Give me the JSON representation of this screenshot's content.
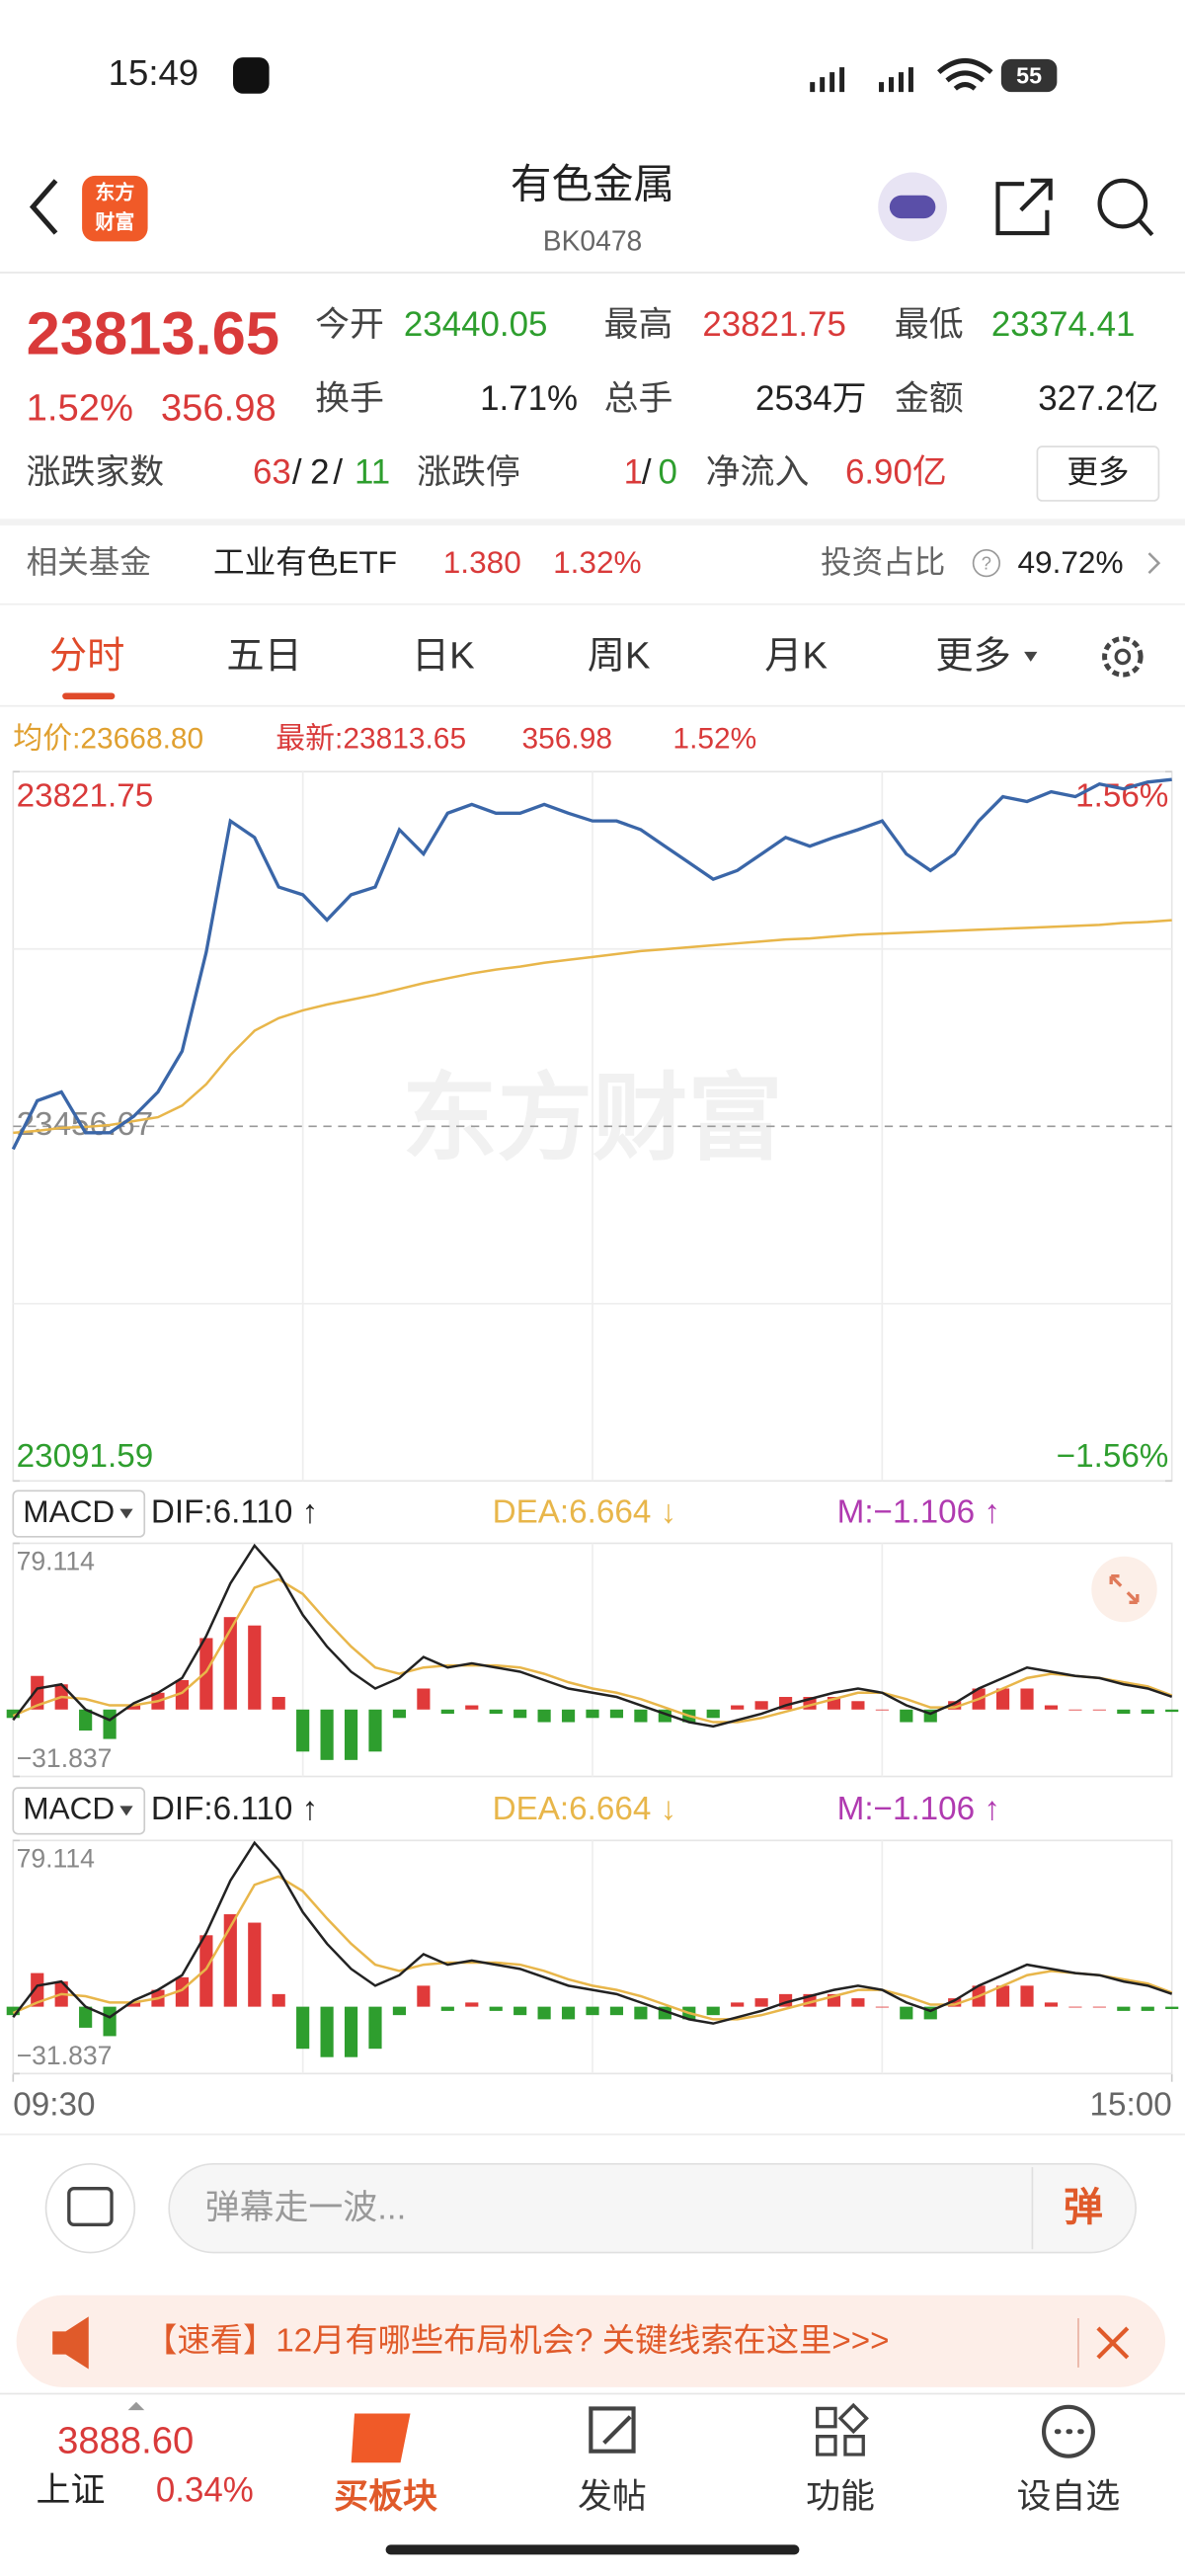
{
  "status_bar": {
    "time": "15:49",
    "battery": "55"
  },
  "header": {
    "logo": [
      "东方",
      "财富"
    ],
    "title": "有色金属",
    "code": "BK0478"
  },
  "quote": {
    "price": "23813.65",
    "change_pct": "1.52%",
    "change": "356.98",
    "fields": [
      {
        "label": "今开",
        "value": "23440.05"
      },
      {
        "label": "最高",
        "value": "23821.75"
      },
      {
        "label": "最低",
        "value": "23374.41"
      },
      {
        "label": "换手",
        "value": "1.71%"
      },
      {
        "label": "总手",
        "value": "2534万"
      },
      {
        "label": "金额",
        "value": "327.2亿"
      }
    ],
    "breadth": {
      "label": "涨跌家数",
      "up": "63",
      "sep": "/",
      "flat": "2",
      "down": "11"
    },
    "limit": {
      "label": "涨跌停",
      "up": "1",
      "sep": "/",
      "down": "0"
    },
    "inflow": {
      "label": "净流入",
      "value": "6.90亿"
    },
    "more": "更多"
  },
  "fund": {
    "label": "相关基金",
    "name": "工业有色ETF",
    "price": "1.380",
    "change": "1.32%",
    "ratio_label": "投资占比",
    "ratio": "49.72%"
  },
  "tabs": [
    "分时",
    "五日",
    "日K",
    "周K",
    "月K",
    "更多"
  ],
  "chart_data": [
    {
      "type": "line",
      "info": {
        "avg": "均价:23668.80",
        "latest": "最新:23813.65",
        "change": "356.98",
        "change_pct": "1.52%"
      },
      "x": [
        0,
        5,
        10,
        15,
        20,
        25,
        30,
        35,
        40,
        45,
        50,
        55,
        60,
        65,
        70,
        75,
        80,
        85,
        90,
        95,
        100,
        105,
        110,
        115,
        120,
        125,
        130,
        135,
        140,
        145,
        150,
        155,
        160,
        165,
        170,
        175,
        180,
        185,
        190,
        195,
        200,
        205,
        210,
        215,
        220,
        225,
        230,
        235,
        240
      ],
      "series": [
        {
          "color": "#3a66a8",
          "values": [
            23433,
            23483,
            23492,
            23450,
            23450,
            23467,
            23492,
            23534,
            23636,
            23771,
            23754,
            23703,
            23695,
            23669,
            23695,
            23703,
            23762,
            23737,
            23779,
            23788,
            23779,
            23779,
            23788,
            23779,
            23771,
            23771,
            23762,
            23745,
            23728,
            23711,
            23720,
            23737,
            23754,
            23745,
            23754,
            23762,
            23771,
            23737,
            23720,
            23737,
            23771,
            23796,
            23791,
            23801,
            23796,
            23809,
            23804,
            23811,
            23813.65
          ]
        },
        {
          "color": "#e8b64a",
          "values": [
            23450,
            23452,
            23455,
            23456,
            23458,
            23462,
            23466,
            23478,
            23500,
            23530,
            23555,
            23568,
            23576,
            23582,
            23587,
            23592,
            23598,
            23604,
            23609,
            23614,
            23618,
            23621,
            23625,
            23628,
            23631,
            23634,
            23637,
            23639,
            23641,
            23643,
            23645,
            23647,
            23649,
            23650,
            23652,
            23654,
            23655,
            23656,
            23657,
            23658,
            23659,
            23660,
            23661,
            23662,
            23663,
            23664,
            23666,
            23667,
            23668.8
          ]
        }
      ],
      "xlim": [
        0,
        240
      ],
      "xticks": [
        {
          "value": 0,
          "label": "09:30"
        },
        {
          "value": 240,
          "label": "15:00"
        }
      ],
      "ylim": [
        23091.59,
        23821.75
      ],
      "yticks": [
        23091.59,
        23456.67,
        23821.75
      ],
      "y2lim": [
        -1.56,
        1.56
      ],
      "y2ticks": [
        {
          "value": -1.56,
          "label": "−1.56%"
        },
        {
          "value": 1.56,
          "label": "1.56%"
        }
      ],
      "grid": true
    },
    {
      "type": "macd",
      "header": {
        "name": "MACD",
        "dif": "DIF:6.110 ↑",
        "dea": "DEA:6.664 ↓",
        "m": "M:−1.106 ↑"
      },
      "x": [
        0,
        5,
        10,
        15,
        20,
        25,
        30,
        35,
        40,
        45,
        50,
        55,
        60,
        65,
        70,
        75,
        80,
        85,
        90,
        95,
        100,
        105,
        110,
        115,
        120,
        125,
        130,
        135,
        140,
        145,
        150,
        155,
        160,
        165,
        170,
        175,
        180,
        185,
        190,
        195,
        200,
        205,
        210,
        215,
        220,
        225,
        230,
        235,
        240
      ],
      "xlim": [
        0,
        240
      ],
      "ylim": [
        -31.837,
        79.114
      ],
      "yticks": [
        {
          "value": -31.837,
          "label": "−31.837"
        },
        79.114
      ],
      "series": [
        {
          "color": "#222222",
          "values": [
            -5,
            10,
            12,
            0,
            -5,
            3,
            8,
            15,
            35,
            60,
            78,
            65,
            45,
            30,
            18,
            10,
            15,
            25,
            20,
            22,
            20,
            18,
            14,
            10,
            8,
            6,
            2,
            -2,
            -6,
            -8,
            -5,
            -2,
            2,
            5,
            8,
            10,
            8,
            2,
            -2,
            3,
            10,
            15,
            20,
            18,
            16,
            15,
            12,
            10,
            6.11
          ]
        },
        {
          "color": "#e8b64a",
          "values": [
            -3,
            2,
            6,
            5,
            2,
            2,
            4,
            8,
            18,
            38,
            58,
            62,
            55,
            42,
            30,
            20,
            17,
            20,
            21,
            21,
            21,
            20,
            17,
            13,
            10,
            8,
            5,
            1,
            -3,
            -6,
            -6,
            -4,
            -1,
            2,
            5,
            8,
            8,
            5,
            1,
            1,
            5,
            10,
            15,
            17,
            16,
            15,
            13,
            11,
            6.664
          ]
        },
        {
          "positive_color": "#e03a3a",
          "negative_color": "#2e9e2e",
          "values": [
            -4,
            16,
            12,
            -10,
            -14,
            2,
            8,
            14,
            34,
            44,
            40,
            6,
            -20,
            -24,
            -24,
            -20,
            -4,
            10,
            -2,
            2,
            -2,
            -4,
            -6,
            -6,
            -4,
            -4,
            -6,
            -6,
            -6,
            -4,
            2,
            4,
            6,
            6,
            6,
            4,
            0,
            -6,
            -6,
            4,
            10,
            10,
            10,
            2,
            0,
            0,
            -2,
            -2,
            -1.106
          ]
        }
      ]
    }
  ],
  "watermark": "东方财富",
  "comment": {
    "placeholder": "弹幕走一波...",
    "button": "弹"
  },
  "banner": "【速看】12月有哪些布局机会? 关键线索在这里>>>",
  "nav": {
    "index_value": "3888.60",
    "index_name": "上证",
    "index_change": "0.34%",
    "items": [
      "买板块",
      "发帖",
      "功能",
      "设自选"
    ]
  }
}
